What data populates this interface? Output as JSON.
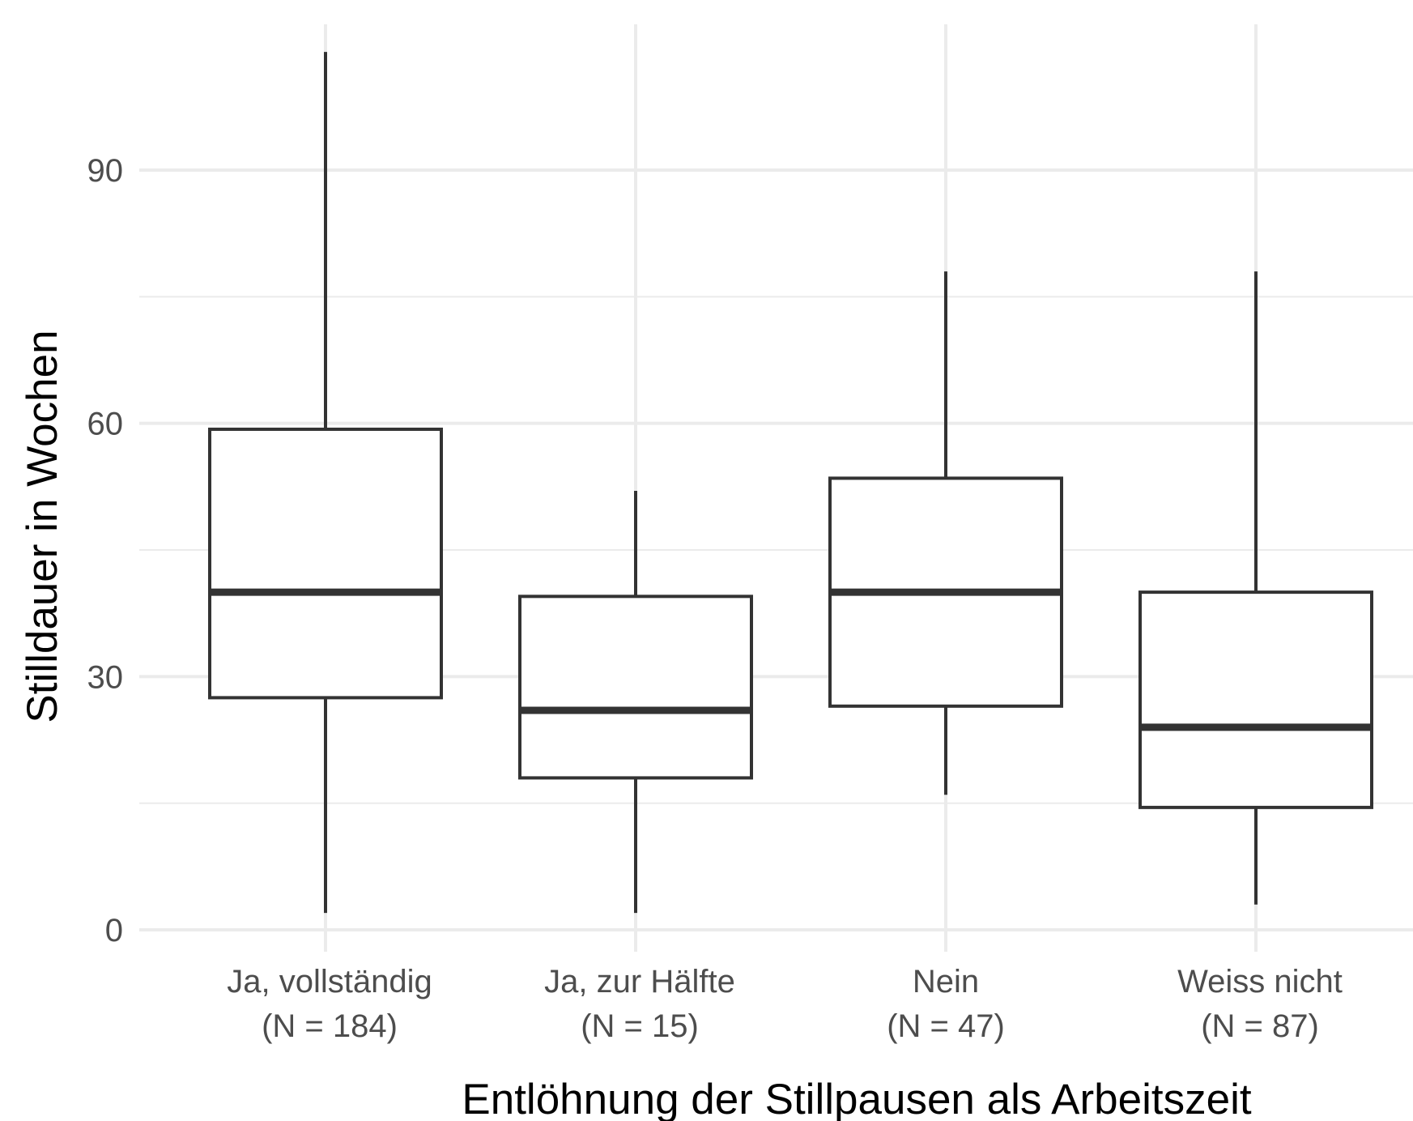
{
  "chart_data": {
    "type": "boxplot",
    "title": "",
    "xlabel": "Entlöhnung der Stillpausen als Arbeitszeit",
    "ylabel": "Stilldauer in Wochen",
    "ylim": [
      -3,
      105
    ],
    "yticks": [
      0,
      30,
      60,
      90
    ],
    "y_minor_gridlines": [
      15,
      45,
      75
    ],
    "grid": true,
    "categories": [
      {
        "label_line1": "Ja, vollständig",
        "label_line2": "(N = 184)"
      },
      {
        "label_line1": "Ja, zur Hälfte",
        "label_line2": "(N = 15)"
      },
      {
        "label_line1": "Nein",
        "label_line2": "(N = 47)"
      },
      {
        "label_line1": "Weiss nicht",
        "label_line2": "(N = 87)"
      }
    ],
    "boxes": [
      {
        "whisker_low": 2,
        "q1": 27.5,
        "median": 40,
        "q3": 59.3,
        "whisker_high": 104
      },
      {
        "whisker_low": 2,
        "q1": 18,
        "median": 26,
        "q3": 39.5,
        "whisker_high": 52
      },
      {
        "whisker_low": 16,
        "q1": 26.5,
        "median": 40,
        "q3": 53.5,
        "whisker_high": 78
      },
      {
        "whisker_low": 3,
        "q1": 14.5,
        "median": 24,
        "q3": 40,
        "whisker_high": 78
      }
    ],
    "colors": {
      "grid": "#ebebeb",
      "box_line": "#333333",
      "box_fill": "#ffffff",
      "tick_text": "#4d4d4d",
      "title_text": "#000000"
    }
  }
}
